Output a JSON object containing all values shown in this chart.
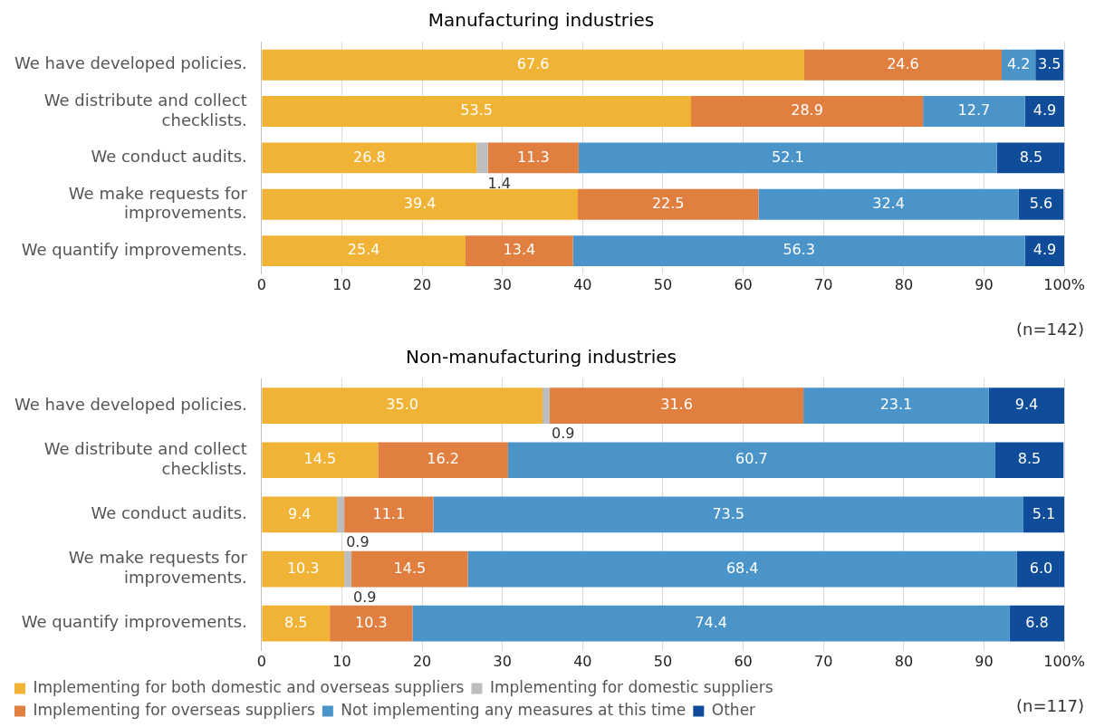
{
  "chart_data": [
    {
      "type": "bar",
      "orientation": "horizontal",
      "stacked": true,
      "title": "Manufacturing industries",
      "categories": [
        "We have developed policies.",
        "We distribute and collect checklists.",
        "We conduct audits.",
        "We make requests for improvements.",
        "We quantify improvements."
      ],
      "series": [
        {
          "color": "#f0b335",
          "values": [
            67.6,
            53.5,
            26.8,
            39.4,
            25.4
          ],
          "value_labels": [
            "67.6",
            "53.5",
            "26.8",
            "39.4",
            "25.4"
          ]
        },
        {
          "color": "#bdbdbd",
          "values": [
            null,
            null,
            1.4,
            null,
            null
          ],
          "value_labels": [
            null,
            null,
            "1.4",
            null,
            null
          ]
        },
        {
          "color": "#e07f3f",
          "values": [
            24.6,
            28.9,
            11.3,
            22.5,
            13.4
          ],
          "value_labels": [
            "24.6",
            "28.9",
            "11.3",
            "22.5",
            "13.4"
          ]
        },
        {
          "color": "#4a94c9",
          "values": [
            4.2,
            12.7,
            52.1,
            32.4,
            56.3
          ],
          "value_labels": [
            "4.2",
            "12.7",
            "52.1",
            "32.4",
            "56.3"
          ]
        },
        {
          "color": "#0f4c99",
          "values": [
            3.5,
            4.9,
            8.5,
            5.6,
            4.9
          ],
          "value_labels": [
            "3.5",
            "4.9",
            "8.5",
            "5.6",
            "4.9"
          ]
        }
      ],
      "xlim": [
        0,
        100
      ],
      "xticks": [
        0,
        10,
        20,
        30,
        40,
        50,
        60,
        70,
        80,
        90,
        {
          "value": 100,
          "label": "100%"
        }
      ],
      "grid": "x",
      "annotations": [
        "(n=142)"
      ]
    },
    {
      "type": "bar",
      "orientation": "horizontal",
      "stacked": true,
      "title": "Non-manufacturing industries",
      "categories": [
        "We have developed policies.",
        "We distribute and collect checklists.",
        "We conduct audits.",
        "We make requests for improvements.",
        "We quantify improvements."
      ],
      "series": [
        {
          "name": "Implementing for both domestic and overseas suppliers",
          "color": "#f0b335",
          "values": [
            35.0,
            14.5,
            9.4,
            10.3,
            8.5
          ],
          "value_labels": [
            "35.0",
            "14.5",
            "9.4",
            "10.3",
            "8.5"
          ]
        },
        {
          "name": "Implementing for domestic suppliers",
          "color": "#bdbdbd",
          "values": [
            0.9,
            null,
            0.9,
            0.9,
            null
          ],
          "value_labels": [
            "0.9",
            null,
            "0.9",
            "0.9",
            null
          ]
        },
        {
          "name": "Implementing for overseas suppliers",
          "color": "#e07f3f",
          "values": [
            31.6,
            16.2,
            11.1,
            14.5,
            10.3
          ],
          "value_labels": [
            "31.6",
            "16.2",
            "11.1",
            "14.5",
            "10.3"
          ]
        },
        {
          "name": "Not implementing any measures at this time",
          "color": "#4a94c9",
          "values": [
            23.1,
            60.7,
            73.5,
            68.4,
            74.4
          ],
          "value_labels": [
            "23.1",
            "60.7",
            "73.5",
            "68.4",
            "74.4"
          ]
        },
        {
          "name": "Other",
          "color": "#0f4c99",
          "values": [
            9.4,
            8.5,
            5.1,
            6.0,
            6.8
          ],
          "value_labels": [
            "9.4",
            "8.5",
            "5.1",
            "6.0",
            "6.8"
          ]
        }
      ],
      "xlim": [
        0,
        100
      ],
      "xticks": [
        0,
        10,
        20,
        30,
        40,
        50,
        60,
        70,
        80,
        90,
        {
          "value": 100,
          "label": "100%"
        }
      ],
      "grid": "x",
      "legend": "bottom",
      "annotations": [
        "(n=117)"
      ]
    }
  ]
}
